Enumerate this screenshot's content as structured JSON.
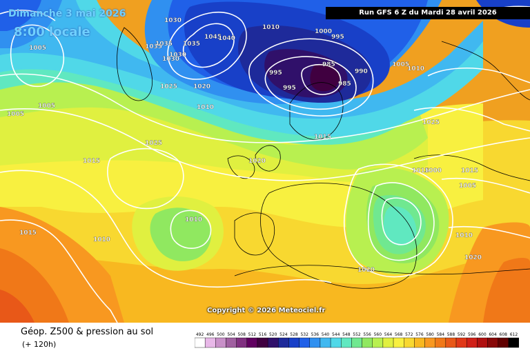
{
  "header": {
    "date_label": "Dimanche 3 mai 2026",
    "time_label": "8:00 locale",
    "run_label": "Run GFS 6 Z du Mardi 28 avril 2026"
  },
  "copyright": "Copyright © 2026 Meteociel.fr",
  "footer": {
    "title": "Géop. Z500 & pression au sol",
    "lead_time": "(+ 120h)"
  },
  "legend": {
    "values": [
      "492",
      "496",
      "500",
      "504",
      "508",
      "512",
      "516",
      "520",
      "524",
      "528",
      "532",
      "536",
      "540",
      "544",
      "548",
      "552",
      "556",
      "560",
      "564",
      "568",
      "572",
      "576",
      "580",
      "584",
      "588",
      "592",
      "596",
      "600",
      "604",
      "608",
      "612"
    ],
    "colors": [
      "#ffffff",
      "#e8b8e8",
      "#c890c8",
      "#a060a0",
      "#803080",
      "#600060",
      "#400040",
      "#30106a",
      "#1e2a9a",
      "#1840c8",
      "#2060e8",
      "#3090f0",
      "#40b8f0",
      "#50d8e8",
      "#60e8c0",
      "#70e890",
      "#90e860",
      "#b8f050",
      "#e0f040",
      "#f8f040",
      "#f8d830",
      "#f8b820",
      "#f89820",
      "#f07818",
      "#e85818",
      "#e03818",
      "#d02018",
      "#b01010",
      "#880808",
      "#600000",
      "#000000"
    ]
  },
  "isobar_labels": [
    "1030",
    "1035",
    "1035",
    "1030",
    "1035",
    "1045",
    "1040",
    "1030",
    "1025",
    "1020",
    "1010",
    "1005",
    "1005",
    "1000",
    "995",
    "985",
    "990",
    "985",
    "995",
    "995",
    "1010",
    "1005",
    "1010",
    "1025",
    "1015",
    "1020",
    "1025",
    "1015",
    "1010",
    "1010",
    "1015",
    "1020",
    "1015",
    "1015",
    "1005",
    "1010",
    "1020",
    "1000",
    "1005"
  ]
}
